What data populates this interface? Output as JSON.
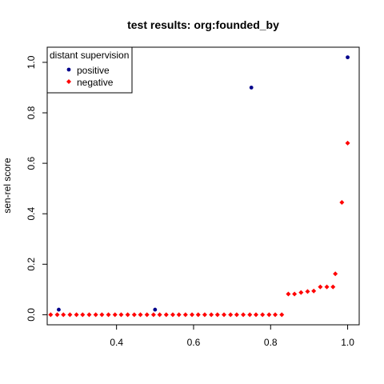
{
  "chart_data": {
    "type": "scatter",
    "title": "test results: org:founded_by",
    "xlabel": "",
    "ylabel": "sen-rel score",
    "xlim": [
      0.22,
      1.03
    ],
    "ylim": [
      -0.04,
      1.06
    ],
    "x_ticks": [
      0.4,
      0.6,
      0.8,
      1.0
    ],
    "x_tick_labels": [
      "0.4",
      "0.6",
      "0.8",
      "1.0"
    ],
    "y_ticks": [
      0.0,
      0.2,
      0.4,
      0.6,
      0.8,
      1.0
    ],
    "y_tick_labels": [
      "0.0",
      "0.2",
      "0.4",
      "0.6",
      "0.8",
      "1.0"
    ],
    "grid": false,
    "legend": {
      "title": "distant supervision",
      "placement": "top-left"
    },
    "series": [
      {
        "name": "positive",
        "color": "#00008B",
        "marker": "circle",
        "points": [
          [
            0.25,
            0.02
          ],
          [
            0.5,
            0.02
          ],
          [
            0.75,
            0.9
          ],
          [
            1.0,
            1.02
          ]
        ]
      },
      {
        "name": "negative",
        "color": "#FF0000",
        "marker": "diamond",
        "points": [
          [
            0.229,
            0.0
          ],
          [
            0.246,
            0.0
          ],
          [
            0.262,
            0.0
          ],
          [
            0.279,
            0.0
          ],
          [
            0.296,
            0.0
          ],
          [
            0.312,
            0.0
          ],
          [
            0.329,
            0.0
          ],
          [
            0.346,
            0.0
          ],
          [
            0.362,
            0.0
          ],
          [
            0.379,
            0.0
          ],
          [
            0.396,
            0.0
          ],
          [
            0.412,
            0.0
          ],
          [
            0.429,
            0.0
          ],
          [
            0.446,
            0.0
          ],
          [
            0.462,
            0.0
          ],
          [
            0.479,
            0.0
          ],
          [
            0.496,
            0.0
          ],
          [
            0.512,
            0.0
          ],
          [
            0.529,
            0.0
          ],
          [
            0.546,
            0.0
          ],
          [
            0.562,
            0.0
          ],
          [
            0.579,
            0.0
          ],
          [
            0.596,
            0.0
          ],
          [
            0.612,
            0.0
          ],
          [
            0.629,
            0.0
          ],
          [
            0.646,
            0.0
          ],
          [
            0.662,
            0.0
          ],
          [
            0.679,
            0.0
          ],
          [
            0.696,
            0.0
          ],
          [
            0.712,
            0.0
          ],
          [
            0.729,
            0.0
          ],
          [
            0.746,
            0.0
          ],
          [
            0.762,
            0.0
          ],
          [
            0.779,
            0.0
          ],
          [
            0.796,
            0.0
          ],
          [
            0.812,
            0.0
          ],
          [
            0.829,
            0.0
          ],
          [
            0.846,
            0.082
          ],
          [
            0.862,
            0.082
          ],
          [
            0.879,
            0.088
          ],
          [
            0.896,
            0.092
          ],
          [
            0.912,
            0.094
          ],
          [
            0.929,
            0.11
          ],
          [
            0.946,
            0.11
          ],
          [
            0.962,
            0.11
          ],
          [
            0.968,
            0.162
          ],
          [
            0.985,
            0.445
          ],
          [
            1.0,
            0.68
          ]
        ]
      }
    ]
  }
}
